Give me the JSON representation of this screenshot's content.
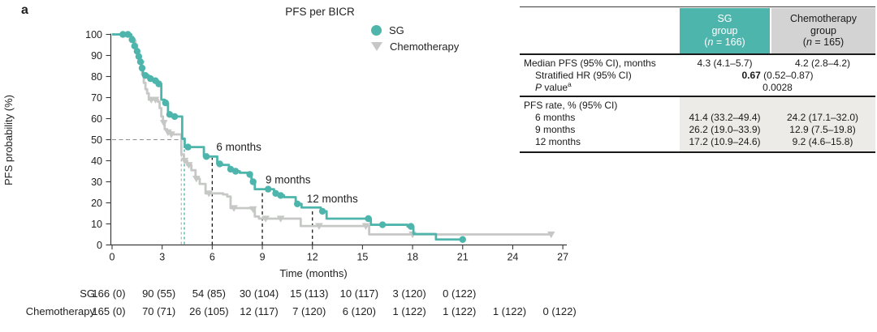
{
  "panel_label": "a",
  "colors": {
    "sg_teal": "#4eb5ac",
    "chemo_curve": "#c6c8c6",
    "header_gray": "#d3d3d3",
    "panel_gray": "#ecebe8"
  },
  "chart_data": {
    "type": "line",
    "variant": "kaplan-meier-step",
    "title": "PFS per BICR",
    "xlabel": "Time (months)",
    "ylabel": "PFS probability (%)",
    "xlim": [
      0,
      27
    ],
    "ylim": [
      0,
      100
    ],
    "xticks": [
      0,
      3,
      6,
      9,
      12,
      15,
      18,
      21,
      24,
      27
    ],
    "yticks": [
      0,
      10,
      20,
      30,
      40,
      50,
      60,
      70,
      80,
      90,
      100
    ],
    "grid": false,
    "legend_position": "top-center",
    "legend": [
      {
        "label": "SG",
        "marker": "circle",
        "color": "#4eb5ac"
      },
      {
        "label": "Chemotherapy",
        "marker": "triangle-down",
        "color": "#c6c8c6"
      }
    ],
    "series": [
      {
        "name": "SG",
        "color": "#4eb5ac",
        "end_time": 21,
        "steps": [
          [
            0,
            100
          ],
          [
            1.15,
            97.5
          ],
          [
            1.3,
            94.5
          ],
          [
            1.45,
            92
          ],
          [
            1.55,
            89.5
          ],
          [
            1.65,
            87
          ],
          [
            1.75,
            84
          ],
          [
            1.85,
            80.5
          ],
          [
            2.2,
            79
          ],
          [
            2.5,
            78
          ],
          [
            2.75,
            76.5
          ],
          [
            2.95,
            69
          ],
          [
            3.15,
            67.5
          ],
          [
            3.35,
            62
          ],
          [
            3.55,
            61
          ],
          [
            4.2,
            50.5
          ],
          [
            4.35,
            46.5
          ],
          [
            5.5,
            42
          ],
          [
            6.3,
            38.5
          ],
          [
            6.6,
            38
          ],
          [
            7.0,
            36
          ],
          [
            7.3,
            35
          ],
          [
            7.65,
            34.3
          ],
          [
            8.15,
            33.5
          ],
          [
            8.35,
            30
          ],
          [
            8.55,
            26.5
          ],
          [
            9.7,
            24.5
          ],
          [
            9.95,
            23.5
          ],
          [
            10.3,
            22.7
          ],
          [
            11.0,
            19.5
          ],
          [
            11.35,
            17.8
          ],
          [
            12.5,
            16
          ],
          [
            12.85,
            12.5
          ],
          [
            15.5,
            9.6
          ],
          [
            17.7,
            8.8
          ],
          [
            18.05,
            5.2
          ],
          [
            19.4,
            2.6
          ]
        ],
        "censor_marks": [
          [
            0.65,
            100
          ],
          [
            0.95,
            100
          ],
          [
            1.2,
            97.5
          ],
          [
            1.35,
            94.5
          ],
          [
            1.5,
            92
          ],
          [
            1.6,
            89.5
          ],
          [
            1.7,
            87
          ],
          [
            1.8,
            84
          ],
          [
            2.0,
            80.5
          ],
          [
            2.3,
            79
          ],
          [
            2.6,
            78
          ],
          [
            2.8,
            76.5
          ],
          [
            3.2,
            67.5
          ],
          [
            3.45,
            62
          ],
          [
            3.75,
            61
          ],
          [
            4.55,
            46.5
          ],
          [
            5.65,
            42
          ],
          [
            6.45,
            38.5
          ],
          [
            7.1,
            36
          ],
          [
            7.4,
            35
          ],
          [
            8.25,
            33.5
          ],
          [
            8.45,
            30
          ],
          [
            9.35,
            26.5
          ],
          [
            9.8,
            24.5
          ],
          [
            10.1,
            23.5
          ],
          [
            11.1,
            19.5
          ],
          [
            12.6,
            16
          ],
          [
            15.35,
            12.5
          ],
          [
            16.2,
            9.6
          ],
          [
            17.9,
            8.8
          ],
          [
            21,
            2.6
          ]
        ]
      },
      {
        "name": "Chemotherapy",
        "color": "#c6c8c6",
        "end_time": 26.3,
        "steps": [
          [
            0,
            100
          ],
          [
            1.1,
            99
          ],
          [
            1.25,
            97
          ],
          [
            1.4,
            95
          ],
          [
            1.5,
            92
          ],
          [
            1.6,
            89
          ],
          [
            1.7,
            86
          ],
          [
            1.8,
            81
          ],
          [
            1.9,
            77
          ],
          [
            2.0,
            74
          ],
          [
            2.1,
            72
          ],
          [
            2.2,
            69
          ],
          [
            2.75,
            68
          ],
          [
            2.85,
            65
          ],
          [
            2.95,
            61
          ],
          [
            3.05,
            58
          ],
          [
            3.15,
            55
          ],
          [
            3.3,
            53.5
          ],
          [
            3.6,
            52.5
          ],
          [
            4.15,
            43
          ],
          [
            4.3,
            40
          ],
          [
            4.5,
            38
          ],
          [
            4.75,
            35.5
          ],
          [
            5.0,
            31.5
          ],
          [
            5.25,
            29
          ],
          [
            5.6,
            24.5
          ],
          [
            6.65,
            24
          ],
          [
            6.9,
            23
          ],
          [
            7.1,
            17.5
          ],
          [
            8.35,
            17
          ],
          [
            8.55,
            13.5
          ],
          [
            8.8,
            12.5
          ],
          [
            11.3,
            9
          ],
          [
            15.4,
            5
          ]
        ],
        "censor_marks": [
          [
            1.75,
            86
          ],
          [
            2.35,
            69
          ],
          [
            2.6,
            69
          ],
          [
            3.1,
            58
          ],
          [
            3.35,
            53.5
          ],
          [
            3.55,
            52.5
          ],
          [
            4.35,
            40
          ],
          [
            4.6,
            38
          ],
          [
            5.05,
            31.5
          ],
          [
            5.8,
            24.5
          ],
          [
            7.3,
            17.5
          ],
          [
            8.45,
            17
          ],
          [
            9.2,
            12.5
          ],
          [
            10.1,
            12.5
          ],
          [
            12.4,
            9
          ],
          [
            15.2,
            9
          ],
          [
            18.0,
            5
          ],
          [
            26.3,
            5
          ]
        ]
      }
    ],
    "median_guides": {
      "horizontal_50pct": {
        "y": 50,
        "x_from": 0,
        "x_to": 4.33,
        "color": "#8f8f8f"
      },
      "vertical": [
        {
          "x": 4.15,
          "color": "#b9bbb9",
          "series": "Chemotherapy"
        },
        {
          "x": 4.33,
          "color": "#4eb5ac",
          "series": "SG"
        }
      ]
    },
    "time_annotations": [
      {
        "x": 6,
        "line_top": 41.4,
        "label": "6 months"
      },
      {
        "x": 9,
        "line_top": 26.2,
        "label": "9 months"
      },
      {
        "x": 12,
        "line_top": 17.2,
        "label": "12 months"
      }
    ]
  },
  "stats_table": {
    "columns": [
      {
        "line1": "SG",
        "line2": "group",
        "n_open": "(",
        "n_var": "n",
        "n_rest": " = 166)"
      },
      {
        "line1": "Chemotherapy",
        "line2": "group",
        "n_open": "(",
        "n_var": "n",
        "n_rest": " = 165)"
      }
    ],
    "rows": {
      "median_label": "Median PFS (95% CI), months",
      "median_sg": "4.3 (4.1–5.7)",
      "median_chemo": "4.2 (2.8–4.2)",
      "hr_label": "Stratified HR (95% CI)",
      "hr_bold": "0.67",
      "hr_rest": " (0.52–0.87)",
      "p_italic": "P",
      "p_rest": " value",
      "p_sup": "a",
      "p_value": "0.0028",
      "rate_label": "PFS rate, % (95% CI)",
      "rate_rows": [
        {
          "label": "6 months",
          "sg": "41.4 (33.2–49.4)",
          "chemo": "24.2 (17.1–32.0)"
        },
        {
          "label": "9 months",
          "sg": "26.2 (19.0–33.9)",
          "chemo": "12.9 (7.5–19.8)"
        },
        {
          "label": "12 months",
          "sg": "17.2 (10.9–24.6)",
          "chemo": "9.2 (4.6–15.8)"
        }
      ]
    }
  },
  "at_risk": {
    "time_step": 3,
    "rows": [
      {
        "label": "SG",
        "counts": [
          "166 (0)",
          "90 (55)",
          "54 (85)",
          "30 (104)",
          "15 (113)",
          "10 (117)",
          "3 (120)",
          "0 (122)"
        ]
      },
      {
        "label": "Chemotherapy",
        "counts": [
          "165 (0)",
          "70 (71)",
          "26 (105)",
          "12 (117)",
          "7 (120)",
          "6 (120)",
          "1 (122)",
          "1 (122)",
          "1 (122)",
          "0 (122)"
        ]
      }
    ]
  }
}
